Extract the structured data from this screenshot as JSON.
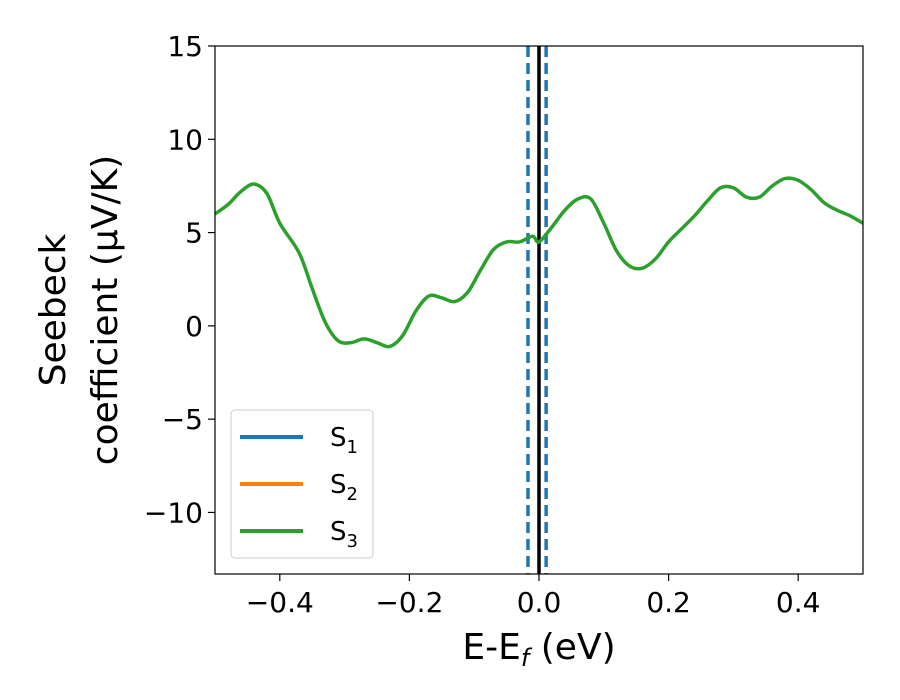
{
  "chart_data": {
    "type": "line",
    "xlabel": {
      "main": "E-E",
      "sub": "f",
      "rest": " (eV)"
    },
    "ylabel": {
      "line1": "Seebeck",
      "line2": "coefficient  (μV/K)"
    },
    "xlim": [
      -0.5,
      0.5
    ],
    "ylim": [
      -13.3,
      15
    ],
    "xticks": [
      -0.4,
      -0.2,
      0.0,
      0.2,
      0.4
    ],
    "xtick_labels": [
      "−0.4",
      "−0.2",
      "0.0",
      "0.2",
      "0.4"
    ],
    "yticks": [
      -10,
      -5,
      0,
      5,
      10,
      15
    ],
    "ytick_labels": [
      "−10",
      "−5",
      "0",
      "5",
      "10",
      "15"
    ],
    "grid": false,
    "legend_position": "lower-left",
    "legend": [
      {
        "base": "S",
        "sub": "1",
        "color": "#1f77b4"
      },
      {
        "base": "S",
        "sub": "2",
        "color": "#ff7f0e"
      },
      {
        "base": "S",
        "sub": "3",
        "color": "#2ca02c"
      }
    ],
    "vertical_lines": [
      {
        "x": -0.017,
        "style": "dashed",
        "color": "#1f77b4"
      },
      {
        "x": 0.0,
        "style": "solid",
        "color": "#000000"
      },
      {
        "x": 0.011,
        "style": "dashed",
        "color": "#1f77b4"
      }
    ],
    "series": [
      {
        "name": "S3",
        "color": "#2ca02c",
        "x": [
          -0.5,
          -0.48,
          -0.46,
          -0.44,
          -0.42,
          -0.4,
          -0.37,
          -0.35,
          -0.33,
          -0.31,
          -0.29,
          -0.27,
          -0.25,
          -0.23,
          -0.21,
          -0.19,
          -0.17,
          -0.15,
          -0.13,
          -0.11,
          -0.09,
          -0.07,
          -0.05,
          -0.03,
          -0.01,
          0.0,
          0.02,
          0.04,
          0.06,
          0.08,
          0.1,
          0.12,
          0.14,
          0.16,
          0.18,
          0.2,
          0.22,
          0.24,
          0.26,
          0.28,
          0.3,
          0.32,
          0.34,
          0.36,
          0.38,
          0.4,
          0.42,
          0.44,
          0.46,
          0.48,
          0.5
        ],
        "values": [
          6.0,
          6.5,
          7.2,
          7.6,
          7.1,
          5.5,
          3.9,
          2.0,
          0.2,
          -0.8,
          -0.9,
          -0.7,
          -0.9,
          -1.1,
          -0.5,
          0.8,
          1.6,
          1.5,
          1.3,
          1.8,
          3.0,
          4.1,
          4.5,
          4.5,
          4.8,
          4.5,
          5.3,
          6.2,
          6.8,
          6.8,
          5.5,
          4.0,
          3.2,
          3.1,
          3.6,
          4.5,
          5.2,
          5.9,
          6.7,
          7.4,
          7.4,
          6.9,
          6.9,
          7.5,
          7.9,
          7.8,
          7.3,
          6.6,
          6.2,
          5.9,
          5.5
        ]
      }
    ]
  }
}
